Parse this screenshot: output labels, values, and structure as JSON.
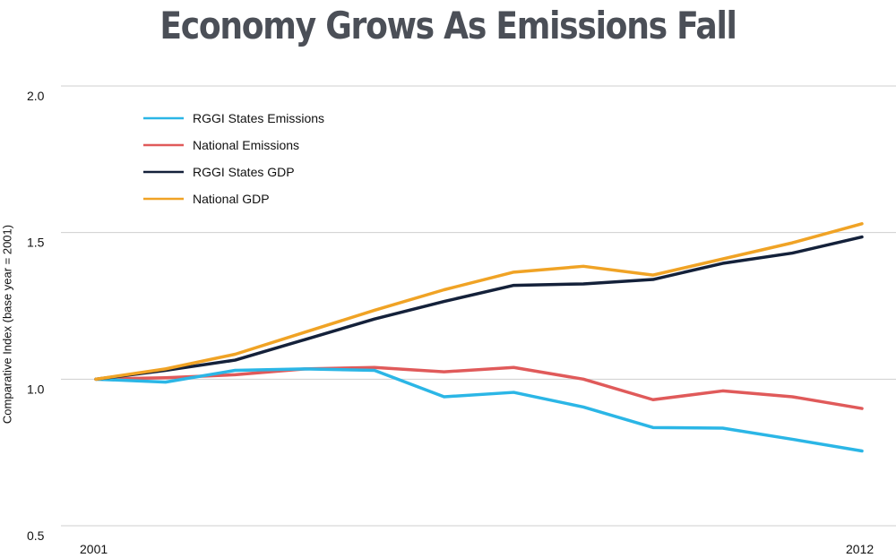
{
  "chart_data": {
    "type": "line",
    "title": "Economy Grows As Emissions Fall",
    "ylabel": "Comparative Index (base year = 2001)",
    "xlabel": "",
    "x": [
      2001,
      2002,
      2003,
      2004,
      2005,
      2006,
      2007,
      2008,
      2009,
      2010,
      2011,
      2012
    ],
    "x_tick_labels": [
      "2001",
      "2012"
    ],
    "ylim": [
      0.5,
      2.0
    ],
    "y_ticks": [
      "0.5",
      "1.0",
      "1.5",
      "2.0"
    ],
    "grid": "horizontal",
    "legend_position": "top-left",
    "series": [
      {
        "name": "RGGI States Emissions",
        "color": "#2bb6e6",
        "values": [
          1.0,
          0.99,
          1.03,
          1.035,
          1.03,
          0.94,
          0.955,
          0.905,
          0.835,
          0.833,
          0.795,
          0.755
        ]
      },
      {
        "name": "National Emissions",
        "color": "#e05a5a",
        "values": [
          1.0,
          1.005,
          1.015,
          1.035,
          1.04,
          1.025,
          1.04,
          1.0,
          0.93,
          0.96,
          0.94,
          0.9
        ]
      },
      {
        "name": "RGGI States GDP",
        "color": "#14213a",
        "values": [
          1.0,
          1.03,
          1.065,
          1.135,
          1.205,
          1.265,
          1.32,
          1.325,
          1.34,
          1.395,
          1.43,
          1.485
        ]
      },
      {
        "name": "National GDP",
        "color": "#f0a325",
        "values": [
          1.0,
          1.035,
          1.085,
          1.16,
          1.235,
          1.305,
          1.365,
          1.385,
          1.355,
          1.41,
          1.465,
          1.53
        ]
      }
    ]
  }
}
